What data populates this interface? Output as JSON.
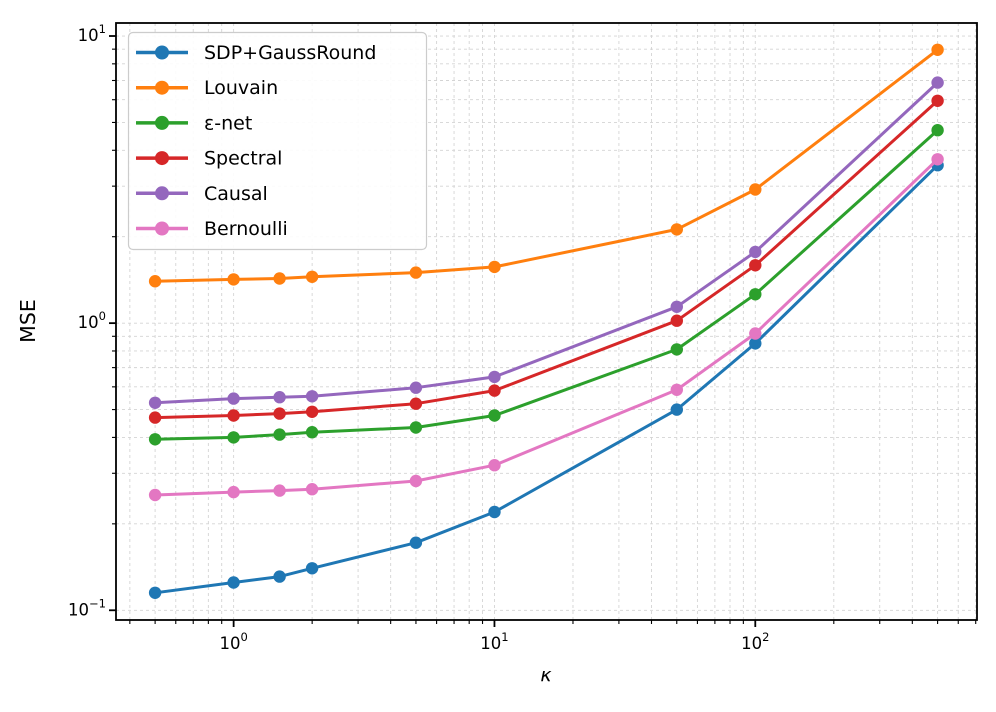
{
  "figure": {
    "background": "#ffffff"
  },
  "chart_data": {
    "type": "line",
    "title": "",
    "xlabel": "κ",
    "ylabel": "MSE",
    "xscale": "log",
    "yscale": "log",
    "xlim": [
      0.354,
      708
    ],
    "ylim": [
      0.0925,
      11.1
    ],
    "grid": true,
    "legend_position": "upper left",
    "x": [
      0.5,
      1,
      1.5,
      2,
      5,
      10,
      50,
      100,
      500
    ],
    "series": [
      {
        "name": "SDP+GaussRound",
        "color": "#1f77b4",
        "values": [
          0.115,
          0.125,
          0.131,
          0.14,
          0.172,
          0.22,
          0.5,
          0.85,
          3.55
        ]
      },
      {
        "name": "Louvain",
        "color": "#ff7f0e",
        "values": [
          1.4,
          1.42,
          1.43,
          1.45,
          1.5,
          1.57,
          2.12,
          2.92,
          8.95
        ]
      },
      {
        "name": "ε-net",
        "color": "#2ca02c",
        "values": [
          0.394,
          0.4,
          0.409,
          0.417,
          0.433,
          0.477,
          0.81,
          1.26,
          4.7
        ]
      },
      {
        "name": "Spectral",
        "color": "#d62728",
        "values": [
          0.469,
          0.477,
          0.484,
          0.491,
          0.524,
          0.582,
          1.02,
          1.59,
          5.95
        ]
      },
      {
        "name": "Causal",
        "color": "#9467bd",
        "values": [
          0.528,
          0.546,
          0.552,
          0.556,
          0.596,
          0.65,
          1.14,
          1.77,
          6.88
        ]
      },
      {
        "name": "Bernoulli",
        "color": "#e377c2",
        "values": [
          0.252,
          0.258,
          0.261,
          0.264,
          0.282,
          0.32,
          0.586,
          0.92,
          3.72
        ]
      }
    ],
    "x_ticks": [
      {
        "value": 1,
        "base": "10",
        "exp": "0"
      },
      {
        "value": 10,
        "base": "10",
        "exp": "1"
      },
      {
        "value": 100,
        "base": "10",
        "exp": "2"
      }
    ],
    "y_ticks": [
      {
        "value": 10,
        "base": "10",
        "exp": "1"
      },
      {
        "value": 1,
        "base": "10",
        "exp": "0"
      },
      {
        "value": 0.1,
        "base": "10",
        "exp": "−1"
      }
    ]
  }
}
